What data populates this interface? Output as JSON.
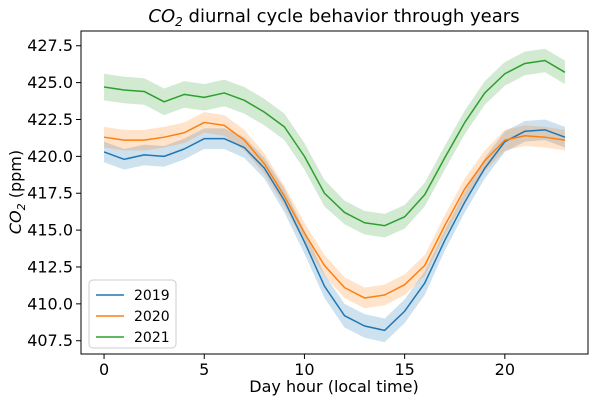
{
  "chart_data": {
    "type": "line",
    "title_prefix": "CO",
    "title_sub": "2",
    "title_suffix": " diurnal cycle behavior through years",
    "xlabel": "Day hour (local time)",
    "ylabel_prefix": "CO",
    "ylabel_sub": "2",
    "ylabel_suffix": " (ppm)",
    "xlim": [
      -1.15,
      24.15
    ],
    "ylim": [
      406.6,
      428.5
    ],
    "xticks": [
      0,
      5,
      10,
      15,
      20
    ],
    "yticks": [
      407.5,
      410.0,
      412.5,
      415.0,
      417.5,
      420.0,
      422.5,
      425.0,
      427.5
    ],
    "ytick_labels": [
      "407.5",
      "410.0",
      "412.5",
      "415.0",
      "417.5",
      "420.0",
      "422.5",
      "425.0",
      "427.5"
    ],
    "x": [
      0,
      1,
      2,
      3,
      4,
      5,
      6,
      7,
      8,
      9,
      10,
      11,
      12,
      13,
      14,
      15,
      16,
      17,
      18,
      19,
      20,
      21,
      22,
      23
    ],
    "legend_position": "lower-left",
    "series": [
      {
        "name": "2019",
        "color": "#1f77b4",
        "values": [
          420.3,
          419.8,
          420.1,
          420.0,
          420.5,
          421.2,
          421.2,
          420.6,
          419.2,
          417.0,
          414.2,
          411.2,
          409.2,
          408.5,
          408.2,
          409.5,
          411.4,
          414.3,
          416.9,
          419.2,
          421.0,
          421.7,
          421.8,
          421.3
        ],
        "lower": [
          419.6,
          419.1,
          419.4,
          419.3,
          419.8,
          420.5,
          420.5,
          419.9,
          418.5,
          416.2,
          413.4,
          410.4,
          408.4,
          407.7,
          407.4,
          408.7,
          410.6,
          413.6,
          416.2,
          418.5,
          420.3,
          421.0,
          421.1,
          420.6
        ],
        "upper": [
          421.0,
          420.5,
          420.8,
          420.7,
          421.2,
          421.9,
          421.9,
          421.3,
          419.9,
          417.8,
          415.0,
          412.0,
          410.0,
          409.3,
          409.0,
          410.3,
          412.2,
          415.0,
          417.6,
          419.9,
          421.7,
          422.4,
          422.5,
          422.0
        ]
      },
      {
        "name": "2020",
        "color": "#ff7f0e",
        "values": [
          421.3,
          421.1,
          421.1,
          421.3,
          421.6,
          422.3,
          422.1,
          421.1,
          419.5,
          417.3,
          414.8,
          412.6,
          411.1,
          410.4,
          410.6,
          411.3,
          412.6,
          415.3,
          417.8,
          419.7,
          421.1,
          421.4,
          421.3,
          421.1
        ],
        "lower": [
          420.6,
          420.4,
          420.4,
          420.6,
          420.9,
          421.6,
          421.4,
          420.4,
          418.8,
          416.6,
          414.1,
          411.9,
          410.4,
          409.7,
          409.9,
          410.6,
          411.9,
          414.6,
          417.1,
          419.0,
          420.4,
          420.7,
          420.6,
          420.4
        ],
        "upper": [
          422.0,
          421.8,
          421.8,
          422.0,
          422.3,
          423.0,
          422.8,
          421.8,
          420.2,
          418.0,
          415.5,
          413.3,
          411.8,
          411.1,
          411.3,
          412.0,
          413.3,
          416.0,
          418.5,
          420.4,
          421.8,
          422.1,
          422.0,
          421.8
        ]
      },
      {
        "name": "2021",
        "color": "#2ca02c",
        "values": [
          424.7,
          424.5,
          424.4,
          423.7,
          424.2,
          424.0,
          424.3,
          423.8,
          423.0,
          422.0,
          420.0,
          417.5,
          416.2,
          415.5,
          415.3,
          415.9,
          417.4,
          419.9,
          422.3,
          424.3,
          425.6,
          426.3,
          426.5,
          425.7
        ],
        "lower": [
          423.8,
          423.6,
          423.5,
          422.8,
          423.3,
          423.1,
          423.4,
          422.9,
          422.1,
          421.1,
          419.1,
          416.6,
          415.4,
          414.7,
          414.5,
          415.1,
          416.6,
          419.1,
          421.5,
          423.5,
          424.8,
          425.5,
          425.7,
          424.9
        ],
        "upper": [
          425.6,
          425.4,
          425.3,
          424.6,
          425.1,
          424.9,
          425.2,
          424.7,
          423.9,
          422.9,
          420.9,
          418.4,
          417.0,
          416.3,
          416.1,
          416.7,
          418.2,
          420.7,
          423.1,
          425.1,
          426.4,
          427.1,
          427.3,
          426.5
        ]
      }
    ]
  }
}
